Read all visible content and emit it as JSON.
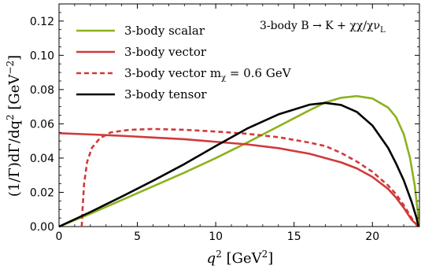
{
  "chart_data": {
    "type": "line",
    "annotation": "3-body B → K + χχ/χν",
    "annotation_sub": "L",
    "xlabel": "q",
    "xlabel_sup": "2",
    "xlabel_unit": "[GeV",
    "xlabel_unit_sup": "2",
    "xlabel_unit_close": "]",
    "ylabel": "(1/Γ)dΓ/dq",
    "ylabel_sup": "2",
    "ylabel_unit": "[GeV",
    "ylabel_unit_sup": "−2",
    "ylabel_unit_close": "]",
    "xlim": [
      0,
      23
    ],
    "ylim": [
      0,
      0.13
    ],
    "xticks": [
      0,
      5,
      10,
      15,
      20
    ],
    "yticks": [
      0.0,
      0.02,
      0.04,
      0.06,
      0.08,
      0.1,
      0.12
    ],
    "ytick_labels": [
      "0.00",
      "0.02",
      "0.04",
      "0.06",
      "0.08",
      "0.10",
      "0.12"
    ],
    "legend_position": "top-left",
    "series": [
      {
        "name": "3-body scalar",
        "color": "#8cb21c",
        "dash": "solid",
        "points": [
          [
            0,
            0
          ],
          [
            2,
            0.0075
          ],
          [
            4,
            0.0155
          ],
          [
            6,
            0.0235
          ],
          [
            8,
            0.0315
          ],
          [
            10,
            0.04
          ],
          [
            12,
            0.049
          ],
          [
            14,
            0.0585
          ],
          [
            16,
            0.068
          ],
          [
            17,
            0.0725
          ],
          [
            18,
            0.0752
          ],
          [
            19,
            0.0762
          ],
          [
            20,
            0.0748
          ],
          [
            21,
            0.0695
          ],
          [
            21.5,
            0.064
          ],
          [
            22,
            0.054
          ],
          [
            22.4,
            0.04
          ],
          [
            22.7,
            0.024
          ],
          [
            22.9,
            0.008
          ],
          [
            22.95,
            0
          ]
        ]
      },
      {
        "name": "3-body vector",
        "color": "#d13a3a",
        "dash": "solid",
        "points": [
          [
            0,
            0.0545
          ],
          [
            2,
            0.0538
          ],
          [
            4,
            0.053
          ],
          [
            6,
            0.052
          ],
          [
            8,
            0.051
          ],
          [
            10,
            0.0495
          ],
          [
            12,
            0.048
          ],
          [
            14,
            0.0458
          ],
          [
            16,
            0.0425
          ],
          [
            18,
            0.0375
          ],
          [
            19,
            0.034
          ],
          [
            20,
            0.029
          ],
          [
            21,
            0.022
          ],
          [
            21.5,
            0.017
          ],
          [
            22,
            0.011
          ],
          [
            22.5,
            0.004
          ],
          [
            22.95,
            0
          ]
        ]
      },
      {
        "name": "3-body vector m",
        "name_sub": "χ",
        "name_suffix": " = 0.6 GeV",
        "color": "#d13a3a",
        "dash": "dashed",
        "points": [
          [
            1.45,
            0
          ],
          [
            1.5,
            0.01
          ],
          [
            1.6,
            0.025
          ],
          [
            1.8,
            0.038
          ],
          [
            2.1,
            0.046
          ],
          [
            2.6,
            0.0515
          ],
          [
            3.3,
            0.055
          ],
          [
            4.5,
            0.0565
          ],
          [
            6,
            0.057
          ],
          [
            8,
            0.0565
          ],
          [
            10,
            0.0555
          ],
          [
            12,
            0.0542
          ],
          [
            14,
            0.0522
          ],
          [
            16,
            0.049
          ],
          [
            17,
            0.047
          ],
          [
            18,
            0.043
          ],
          [
            19,
            0.038
          ],
          [
            20,
            0.032
          ],
          [
            21,
            0.024
          ],
          [
            21.5,
            0.019
          ],
          [
            22,
            0.0125
          ],
          [
            22.5,
            0.005
          ],
          [
            22.9,
            0
          ]
        ]
      },
      {
        "name": "3-body tensor",
        "color": "#000000",
        "dash": "solid",
        "points": [
          [
            0,
            0
          ],
          [
            2,
            0.0085
          ],
          [
            4,
            0.0175
          ],
          [
            6,
            0.0268
          ],
          [
            8,
            0.0365
          ],
          [
            10,
            0.047
          ],
          [
            12,
            0.0572
          ],
          [
            14,
            0.0655
          ],
          [
            16,
            0.0712
          ],
          [
            17,
            0.0722
          ],
          [
            18,
            0.071
          ],
          [
            19,
            0.067
          ],
          [
            20,
            0.059
          ],
          [
            21,
            0.046
          ],
          [
            21.5,
            0.037
          ],
          [
            22,
            0.027
          ],
          [
            22.5,
            0.0145
          ],
          [
            22.8,
            0.0055
          ],
          [
            22.95,
            0
          ]
        ]
      }
    ]
  }
}
